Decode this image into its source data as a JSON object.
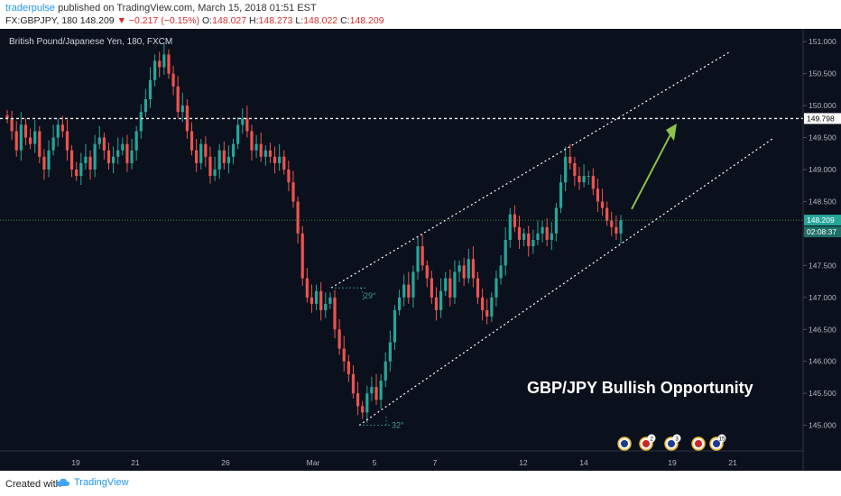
{
  "header": {
    "author": "traderpulse",
    "published_text": "published on TradingView.com, March 15, 2018 01:51 EST",
    "symbol": "FX:GBPJPY, 180",
    "price": "148.209",
    "change": "▼ −0.217 (−0.15%)",
    "open_label": "O:",
    "open": "148.027",
    "high_label": "H:",
    "high": "148.273",
    "low_label": "L:",
    "low": "148.022",
    "close_label": "C:",
    "close": "148.209"
  },
  "chart_data": {
    "type": "candlestick",
    "title": "British Pound/Japanese Yen, 180, FXCM",
    "annotation": "GBP/JPY Bullish Opportunity",
    "y_ticks": [
      "151.000",
      "150.500",
      "150.000",
      "149.500",
      "149.000",
      "148.500",
      "148.000",
      "147.500",
      "147.000",
      "146.500",
      "146.000",
      "145.500",
      "145.000"
    ],
    "x_ticks": [
      "19",
      "21",
      "26",
      "Mar",
      "5",
      "7",
      "12",
      "14",
      "19",
      "21"
    ],
    "ylim": [
      144.6,
      151.2
    ],
    "horizontal_level": "149.798",
    "last_price": "148.209",
    "countdown": "02:08:37",
    "angles": [
      "29°",
      "32°"
    ],
    "series": [
      {
        "name": "closes",
        "values": [
          149.8,
          149.6,
          149.3,
          149.7,
          149.5,
          149.4,
          149.6,
          149.2,
          149.0,
          149.3,
          149.5,
          149.7,
          149.6,
          149.3,
          149.0,
          148.9,
          149.1,
          149.2,
          149.0,
          149.4,
          149.5,
          149.3,
          149.1,
          149.2,
          149.3,
          149.4,
          149.1,
          149.3,
          149.6,
          149.9,
          150.1,
          150.4,
          150.7,
          150.6,
          150.8,
          150.5,
          150.3,
          149.9,
          150.0,
          149.6,
          149.3,
          149.1,
          149.4,
          149.2,
          148.9,
          149.0,
          149.3,
          149.1,
          149.2,
          149.4,
          149.7,
          149.8,
          149.6,
          149.3,
          149.4,
          149.2,
          149.3,
          149.2,
          149.1,
          149.2,
          149.0,
          148.8,
          148.5,
          148.0,
          147.3,
          147.0,
          146.9,
          147.1,
          146.8,
          146.9,
          147.0,
          146.5,
          146.2,
          146.0,
          145.8,
          145.5,
          145.3,
          145.2,
          145.5,
          145.6,
          145.4,
          145.7,
          146.0,
          146.3,
          146.8,
          147.0,
          147.2,
          147.0,
          147.4,
          147.8,
          147.5,
          147.3,
          147.0,
          146.8,
          147.1,
          147.3,
          147.0,
          147.4,
          147.5,
          147.3,
          147.6,
          147.3,
          147.0,
          146.8,
          146.7,
          147.0,
          147.3,
          147.5,
          147.9,
          148.3,
          148.1,
          147.9,
          148.0,
          147.8,
          147.9,
          148.0,
          148.1,
          147.9,
          148.0,
          148.4,
          148.8,
          149.2,
          149.1,
          148.9,
          148.8,
          148.9,
          148.9,
          148.7,
          148.5,
          148.4,
          148.2,
          148.1,
          148.0,
          148.209
        ]
      }
    ],
    "arrow": "up"
  },
  "events": [
    "uk-flag-icon",
    "uk-jp-flag-icon",
    "jp-flag-icon",
    "jp-flag-icon",
    "uk-flag-icon"
  ],
  "event_badges": [
    "2",
    "3",
    "15"
  ],
  "footer": {
    "created_with": "Created with",
    "brand": "TradingView"
  }
}
